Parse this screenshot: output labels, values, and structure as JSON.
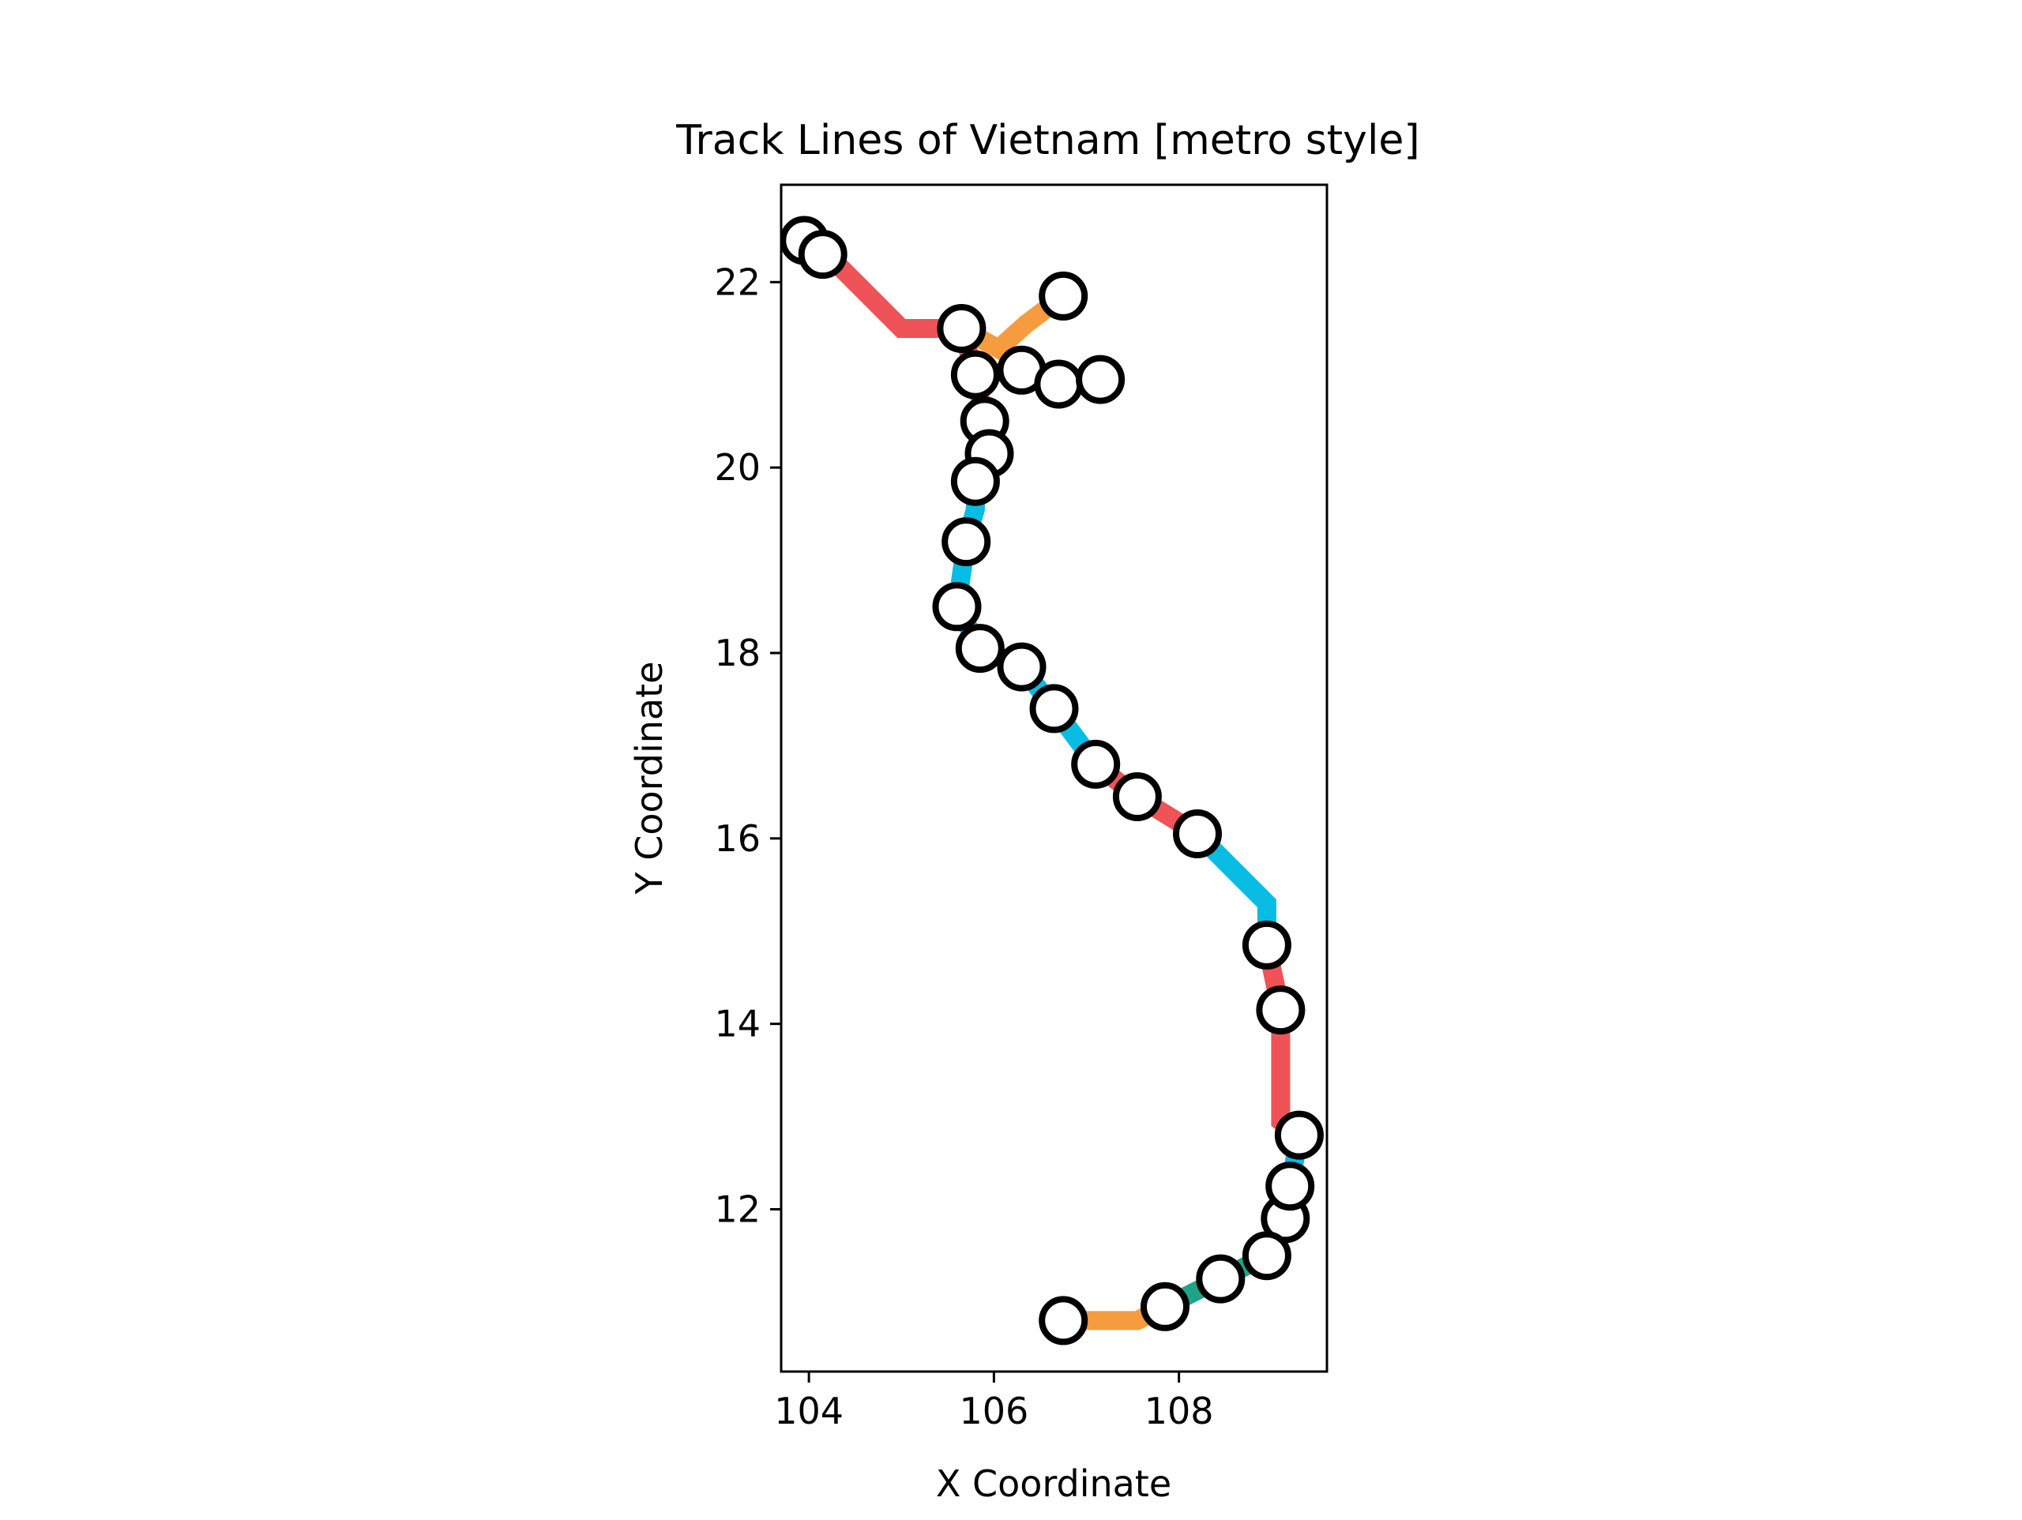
{
  "chart_data": {
    "type": "line",
    "style": "metro",
    "title": "Track Lines of Vietnam [metro style]",
    "xlabel": "X Coordinate",
    "ylabel": "Y Coordinate",
    "xlim": [
      103.7,
      109.6
    ],
    "ylim": [
      10.25,
      23.05
    ],
    "xticks": [
      104,
      106,
      108
    ],
    "yticks": [
      12,
      14,
      16,
      18,
      20,
      22
    ],
    "grid": false,
    "legend": "none",
    "aspect": "equal",
    "series": [
      {
        "color": "#ef5257",
        "points": [
          [
            103.95,
            22.45
          ],
          [
            104.2,
            22.3
          ],
          [
            105.0,
            21.5
          ],
          [
            105.65,
            21.5
          ]
        ]
      },
      {
        "color": "#f79c3e",
        "points": [
          [
            105.65,
            21.5
          ],
          [
            106.05,
            21.28
          ],
          [
            106.35,
            21.55
          ],
          [
            106.75,
            21.85
          ]
        ]
      },
      {
        "color": "#ef5257",
        "points": [
          [
            105.65,
            21.5
          ],
          [
            105.8,
            21.0
          ],
          [
            106.3,
            21.05
          ],
          [
            106.7,
            20.9
          ],
          [
            107.15,
            20.95
          ]
        ]
      },
      {
        "color": "#ef5257",
        "points": [
          [
            105.8,
            21.0
          ],
          [
            105.9,
            20.5
          ],
          [
            105.95,
            20.15
          ],
          [
            105.8,
            19.85
          ]
        ]
      },
      {
        "color": "#09bce3",
        "points": [
          [
            105.8,
            19.85
          ],
          [
            105.8,
            19.55
          ],
          [
            105.7,
            19.2
          ],
          [
            105.6,
            18.5
          ],
          [
            105.85,
            18.05
          ],
          [
            106.3,
            17.85
          ],
          [
            106.65,
            17.4
          ],
          [
            107.1,
            16.8
          ]
        ]
      },
      {
        "color": "#ef5257",
        "points": [
          [
            107.1,
            16.8
          ],
          [
            107.55,
            16.45
          ],
          [
            108.2,
            16.05
          ]
        ]
      },
      {
        "color": "#09bce3",
        "points": [
          [
            108.2,
            16.05
          ],
          [
            108.95,
            15.3
          ],
          [
            108.95,
            14.85
          ]
        ]
      },
      {
        "color": "#ef5257",
        "points": [
          [
            108.95,
            14.85
          ],
          [
            109.1,
            14.15
          ],
          [
            109.1,
            12.95
          ],
          [
            109.3,
            12.8
          ]
        ]
      },
      {
        "color": "#09bce3",
        "points": [
          [
            109.3,
            12.8
          ],
          [
            109.2,
            12.25
          ],
          [
            109.15,
            11.9
          ],
          [
            108.95,
            11.5
          ]
        ]
      },
      {
        "color": "#1fa387",
        "points": [
          [
            108.95,
            11.5
          ],
          [
            108.45,
            11.25
          ],
          [
            108.15,
            11.1
          ],
          [
            107.85,
            10.95
          ]
        ]
      },
      {
        "color": "#f79c3e",
        "points": [
          [
            107.85,
            10.95
          ],
          [
            107.55,
            10.8
          ],
          [
            106.75,
            10.8
          ]
        ]
      }
    ],
    "stations": [
      [
        103.95,
        22.45
      ],
      [
        104.15,
        22.3
      ],
      [
        105.65,
        21.5
      ],
      [
        106.75,
        21.85
      ],
      [
        105.8,
        21.0
      ],
      [
        106.3,
        21.05
      ],
      [
        106.7,
        20.9
      ],
      [
        107.15,
        20.95
      ],
      [
        105.9,
        20.5
      ],
      [
        105.95,
        20.15
      ],
      [
        105.8,
        19.85
      ],
      [
        105.7,
        19.2
      ],
      [
        105.6,
        18.5
      ],
      [
        105.85,
        18.05
      ],
      [
        106.3,
        17.85
      ],
      [
        106.65,
        17.4
      ],
      [
        107.1,
        16.8
      ],
      [
        107.55,
        16.45
      ],
      [
        108.2,
        16.05
      ],
      [
        108.95,
        14.85
      ],
      [
        109.1,
        14.15
      ],
      [
        109.3,
        12.8
      ],
      [
        109.15,
        11.9
      ],
      [
        109.2,
        12.25
      ],
      [
        108.95,
        11.5
      ],
      [
        108.45,
        11.25
      ],
      [
        107.85,
        10.95
      ],
      [
        106.75,
        10.8
      ]
    ],
    "station_fill": "#ffffff",
    "station_stroke": "#000000"
  }
}
